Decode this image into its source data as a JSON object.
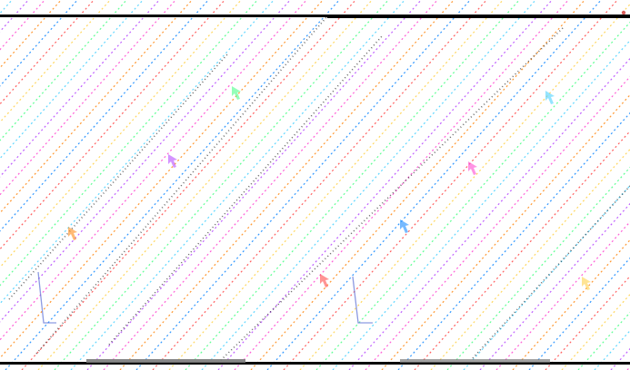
{
  "colors": {
    "background": "#ffffff",
    "stroke": "#000000",
    "rainbow": [
      "#ff4d4d",
      "#ffd24d",
      "#4dff88",
      "#4dd2ff",
      "#b84dff",
      "#ff4dd2",
      "#ff8c1a",
      "#1a8cff"
    ],
    "dark": "#1a1a1a",
    "gray": "#7a7a7a"
  },
  "icons": {
    "corner": "corner-marker-icon"
  }
}
